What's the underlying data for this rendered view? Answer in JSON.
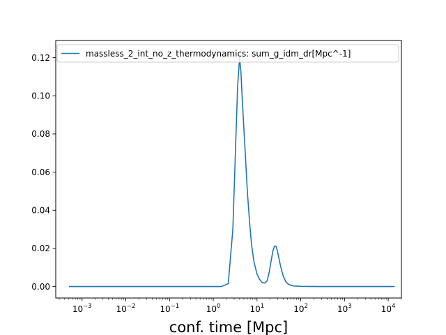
{
  "chart_data": {
    "type": "line",
    "title": "",
    "xlabel": "conf. time [Mpc]",
    "ylabel": "",
    "x_scale": "log",
    "xlim": [
      0.00025,
      20000
    ],
    "ylim": [
      -0.006,
      0.129
    ],
    "grid": false,
    "legend_position": "top-left",
    "x_ticks": [
      {
        "value": 0.001,
        "label": "10^-3",
        "base": "10",
        "exp": "−3"
      },
      {
        "value": 0.01,
        "label": "10^-2",
        "base": "10",
        "exp": "−2"
      },
      {
        "value": 0.1,
        "label": "10^-1",
        "base": "10",
        "exp": "−1"
      },
      {
        "value": 1,
        "label": "10^0",
        "base": "10",
        "exp": "0"
      },
      {
        "value": 10,
        "label": "10^1",
        "base": "10",
        "exp": "1"
      },
      {
        "value": 100,
        "label": "10^2",
        "base": "10",
        "exp": "2"
      },
      {
        "value": 1000,
        "label": "10^3",
        "base": "10",
        "exp": "3"
      },
      {
        "value": 10000,
        "label": "10^4",
        "base": "10",
        "exp": "4"
      }
    ],
    "y_ticks": [
      {
        "value": 0.0,
        "label": "0.00"
      },
      {
        "value": 0.02,
        "label": "0.02"
      },
      {
        "value": 0.04,
        "label": "0.04"
      },
      {
        "value": 0.06,
        "label": "0.06"
      },
      {
        "value": 0.08,
        "label": "0.08"
      },
      {
        "value": 0.1,
        "label": "0.10"
      },
      {
        "value": 0.12,
        "label": "0.12"
      }
    ],
    "series": [
      {
        "name": "massless_2_int_no_z_thermodynamics: sum_g_idm_dr[Mpc^-1]",
        "color": "#1f77b4",
        "x": [
          0.0005,
          0.001,
          0.01,
          0.1,
          1,
          1.5,
          2.2,
          2.8,
          3.2,
          3.6,
          4.0,
          4.3,
          4.6,
          5.0,
          5.5,
          6.0,
          6.8,
          7.5,
          8.5,
          10,
          11.5,
          13,
          15,
          17,
          19,
          21,
          23,
          25,
          27,
          29,
          31,
          34,
          37,
          40,
          45,
          50,
          60,
          70,
          85,
          100,
          150,
          300,
          1000,
          5000,
          14000
        ],
        "y": [
          0,
          0,
          0,
          0,
          0,
          0,
          0.0015,
          0.03,
          0.07,
          0.105,
          0.12,
          0.112,
          0.098,
          0.083,
          0.066,
          0.05,
          0.033,
          0.022,
          0.013,
          0.0065,
          0.0037,
          0.0022,
          0.0018,
          0.003,
          0.0075,
          0.0135,
          0.0185,
          0.0212,
          0.0212,
          0.019,
          0.0158,
          0.0115,
          0.008,
          0.0053,
          0.0028,
          0.0015,
          0.0006,
          0.0003,
          0.0002,
          0.0001,
          5e-05,
          3e-05,
          2e-05,
          1e-05,
          1e-05
        ]
      }
    ]
  }
}
